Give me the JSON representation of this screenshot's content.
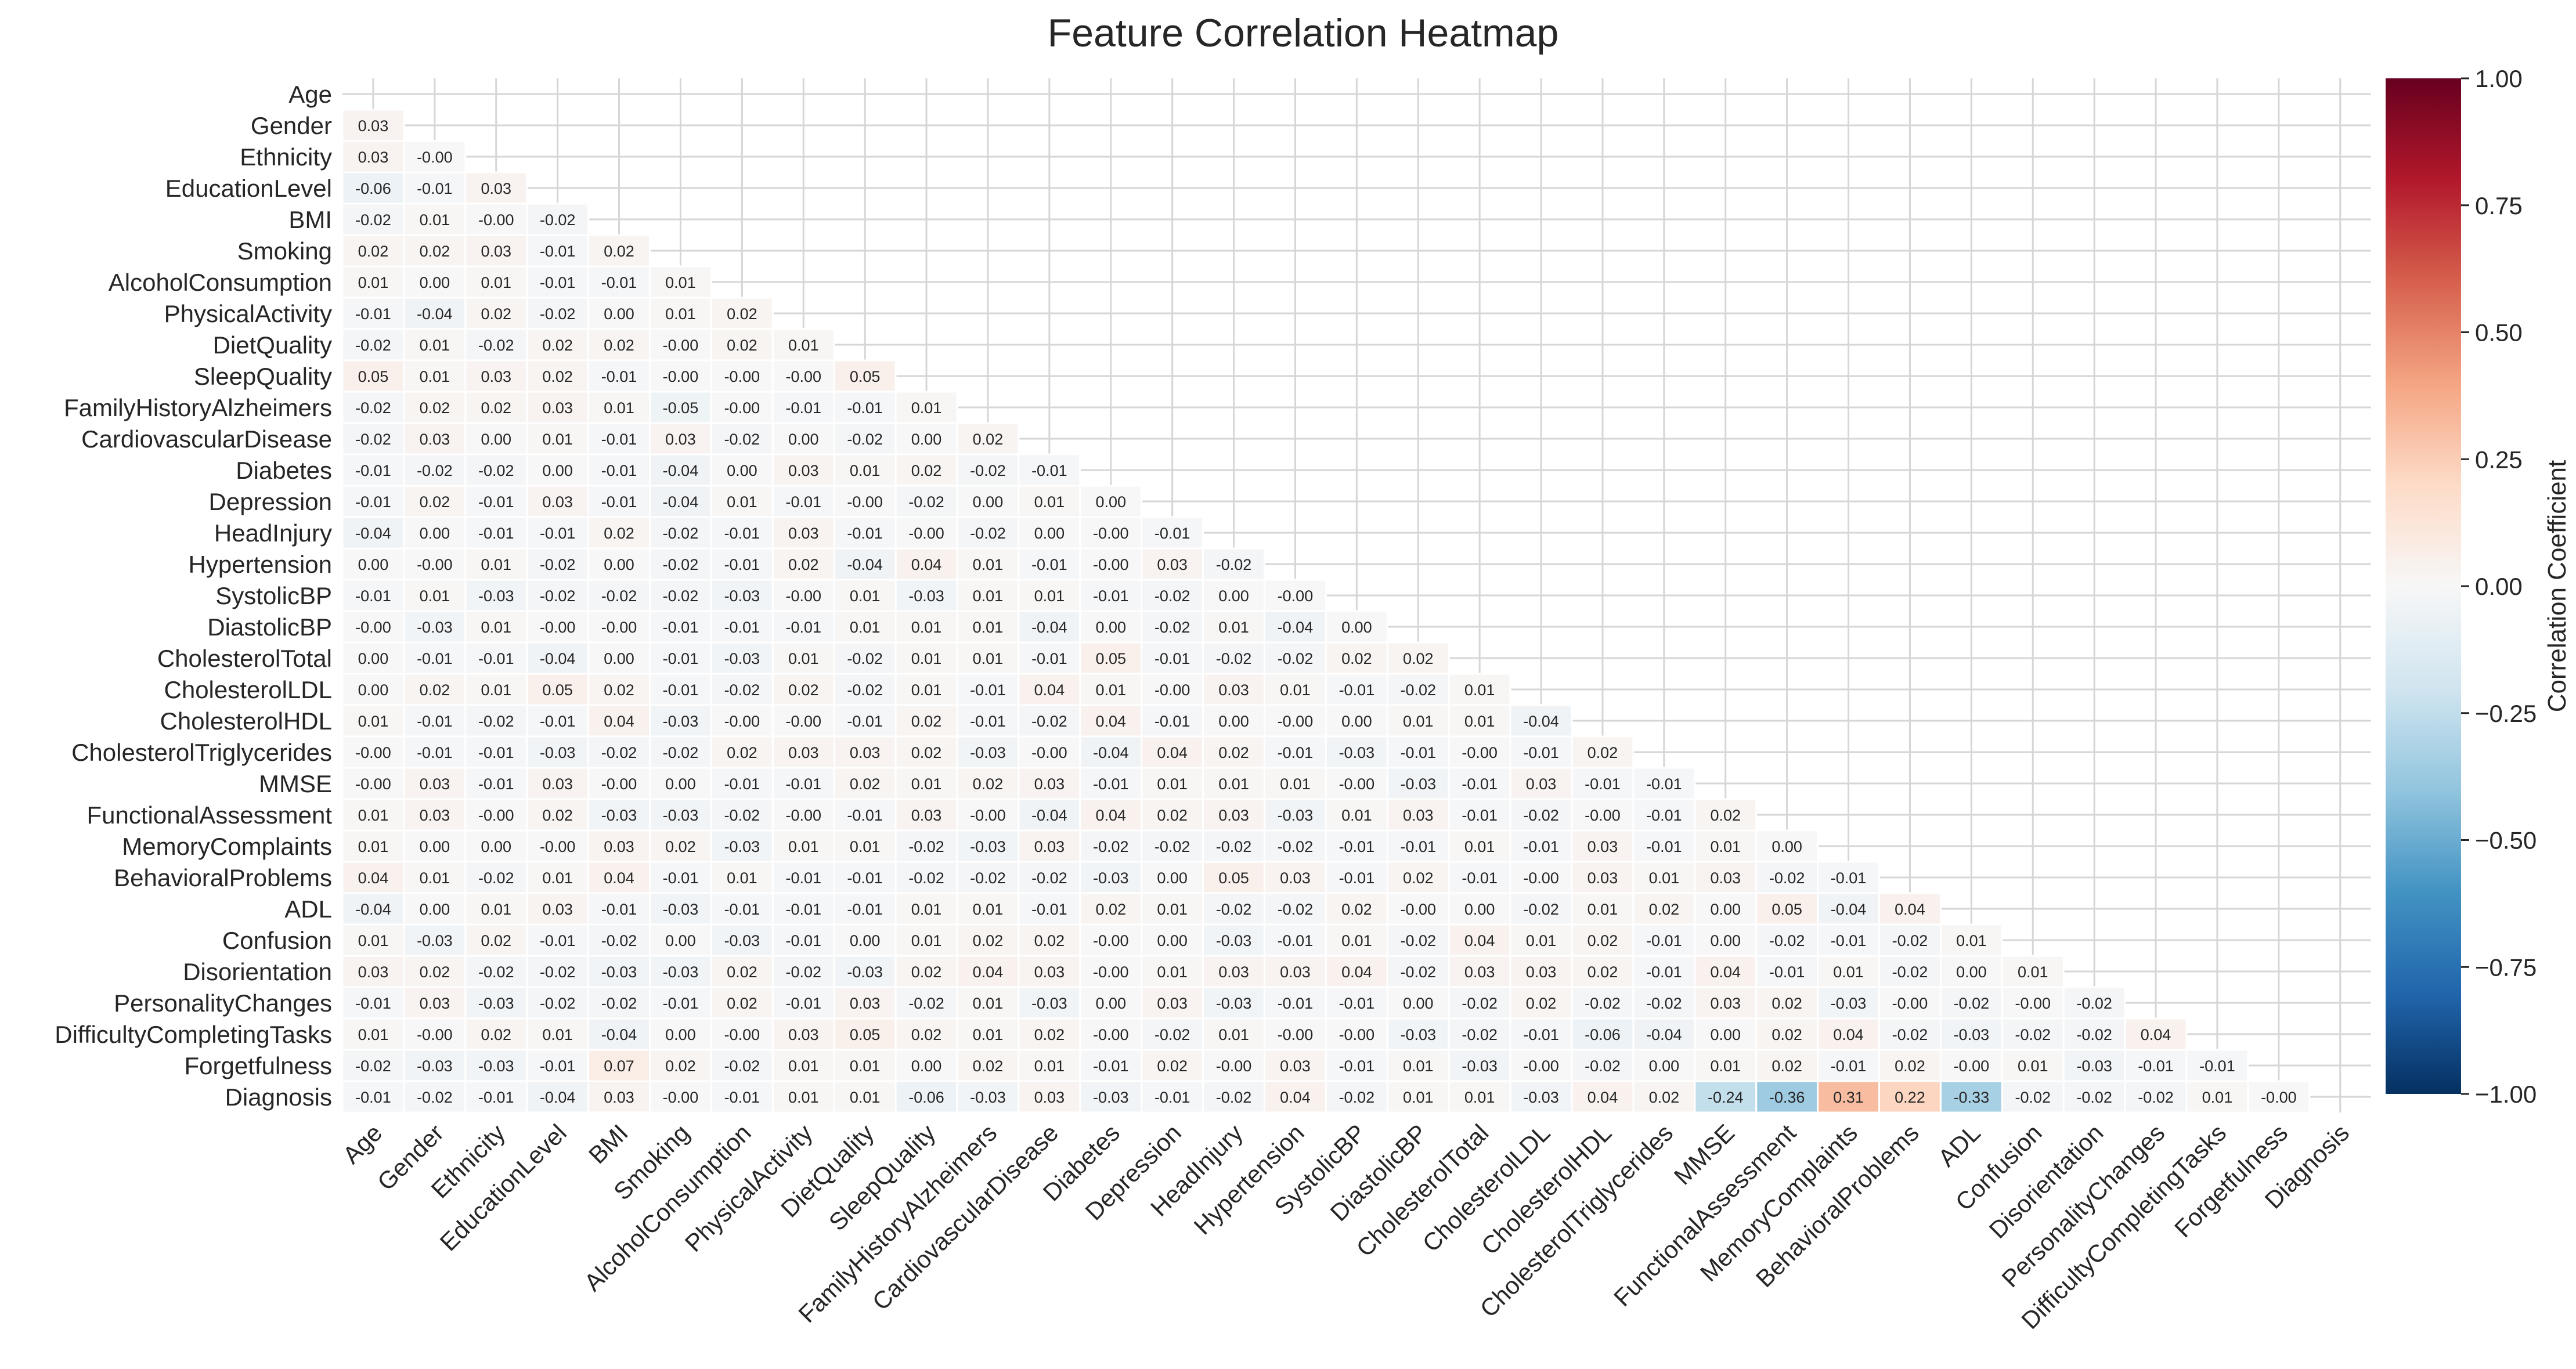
{
  "chart_data": {
    "type": "heatmap",
    "title": "Feature Correlation Heatmap",
    "variables": [
      "Age",
      "Gender",
      "Ethnicity",
      "EducationLevel",
      "BMI",
      "Smoking",
      "AlcoholConsumption",
      "PhysicalActivity",
      "DietQuality",
      "SleepQuality",
      "FamilyHistoryAlzheimers",
      "CardiovascularDisease",
      "Diabetes",
      "Depression",
      "HeadInjury",
      "Hypertension",
      "SystolicBP",
      "DiastolicBP",
      "CholesterolTotal",
      "CholesterolLDL",
      "CholesterolHDL",
      "CholesterolTriglycerides",
      "MMSE",
      "FunctionalAssessment",
      "MemoryComplaints",
      "BehavioralProblems",
      "ADL",
      "Confusion",
      "Disorientation",
      "PersonalityChanges",
      "DifficultyCompletingTasks",
      "Forgetfulness",
      "Diagnosis"
    ],
    "mask": "upper-triangle",
    "lower_triangle_values": [
      [],
      [
        "0.03"
      ],
      [
        "0.03",
        "-0.00"
      ],
      [
        "-0.06",
        "-0.01",
        "0.03"
      ],
      [
        "-0.02",
        "0.01",
        "-0.00",
        "-0.02"
      ],
      [
        "0.02",
        "0.02",
        "0.03",
        "-0.01",
        "0.02"
      ],
      [
        "0.01",
        "0.00",
        "0.01",
        "-0.01",
        "-0.01",
        "0.01"
      ],
      [
        "-0.01",
        "-0.04",
        "0.02",
        "-0.02",
        "0.00",
        "0.01",
        "0.02"
      ],
      [
        "-0.02",
        "0.01",
        "-0.02",
        "0.02",
        "0.02",
        "-0.00",
        "0.02",
        "0.01"
      ],
      [
        "0.05",
        "0.01",
        "0.03",
        "0.02",
        "-0.01",
        "-0.00",
        "-0.00",
        "-0.00",
        "0.05"
      ],
      [
        "-0.02",
        "0.02",
        "0.02",
        "0.03",
        "0.01",
        "-0.05",
        "-0.00",
        "-0.01",
        "-0.01",
        "0.01"
      ],
      [
        "-0.02",
        "0.03",
        "0.00",
        "0.01",
        "-0.01",
        "0.03",
        "-0.02",
        "0.00",
        "-0.02",
        "0.00",
        "0.02"
      ],
      [
        "-0.01",
        "-0.02",
        "-0.02",
        "0.00",
        "-0.01",
        "-0.04",
        "0.00",
        "0.03",
        "0.01",
        "0.02",
        "-0.02",
        "-0.01"
      ],
      [
        "-0.01",
        "0.02",
        "-0.01",
        "0.03",
        "-0.01",
        "-0.04",
        "0.01",
        "-0.01",
        "-0.00",
        "-0.02",
        "0.00",
        "0.01",
        "0.00"
      ],
      [
        "-0.04",
        "0.00",
        "-0.01",
        "-0.01",
        "0.02",
        "-0.02",
        "-0.01",
        "0.03",
        "-0.01",
        "-0.00",
        "-0.02",
        "0.00",
        "-0.00",
        "-0.01"
      ],
      [
        "0.00",
        "-0.00",
        "0.01",
        "-0.02",
        "0.00",
        "-0.02",
        "-0.01",
        "0.02",
        "-0.04",
        "0.04",
        "0.01",
        "-0.01",
        "-0.00",
        "0.03",
        "-0.02"
      ],
      [
        "-0.01",
        "0.01",
        "-0.03",
        "-0.02",
        "-0.02",
        "-0.02",
        "-0.03",
        "-0.00",
        "0.01",
        "-0.03",
        "0.01",
        "0.01",
        "-0.01",
        "-0.02",
        "0.00",
        "-0.00"
      ],
      [
        "-0.00",
        "-0.03",
        "0.01",
        "-0.00",
        "-0.00",
        "-0.01",
        "-0.01",
        "-0.01",
        "0.01",
        "0.01",
        "0.01",
        "-0.04",
        "0.00",
        "-0.02",
        "0.01",
        "-0.04",
        "0.00"
      ],
      [
        "0.00",
        "-0.01",
        "-0.01",
        "-0.04",
        "0.00",
        "-0.01",
        "-0.03",
        "0.01",
        "-0.02",
        "0.01",
        "0.01",
        "-0.01",
        "0.05",
        "-0.01",
        "-0.02",
        "-0.02",
        "0.02",
        "0.02"
      ],
      [
        "0.00",
        "0.02",
        "0.01",
        "0.05",
        "0.02",
        "-0.01",
        "-0.02",
        "0.02",
        "-0.02",
        "0.01",
        "-0.01",
        "0.04",
        "0.01",
        "-0.00",
        "0.03",
        "0.01",
        "-0.01",
        "-0.02",
        "0.01"
      ],
      [
        "0.01",
        "-0.01",
        "-0.02",
        "-0.01",
        "0.04",
        "-0.03",
        "-0.00",
        "-0.00",
        "-0.01",
        "0.02",
        "-0.01",
        "-0.02",
        "0.04",
        "-0.01",
        "0.00",
        "-0.00",
        "0.00",
        "0.01",
        "0.01",
        "-0.04"
      ],
      [
        "-0.00",
        "-0.01",
        "-0.01",
        "-0.03",
        "-0.02",
        "-0.02",
        "0.02",
        "0.03",
        "0.03",
        "0.02",
        "-0.03",
        "-0.00",
        "-0.04",
        "0.04",
        "0.02",
        "-0.01",
        "-0.03",
        "-0.01",
        "-0.00",
        "-0.01",
        "0.02"
      ],
      [
        "-0.00",
        "0.03",
        "-0.01",
        "0.03",
        "-0.00",
        "0.00",
        "-0.01",
        "-0.01",
        "0.02",
        "0.01",
        "0.02",
        "0.03",
        "-0.01",
        "0.01",
        "0.01",
        "0.01",
        "-0.00",
        "-0.03",
        "-0.01",
        "0.03",
        "-0.01",
        "-0.01"
      ],
      [
        "0.01",
        "0.03",
        "-0.00",
        "0.02",
        "-0.03",
        "-0.03",
        "-0.02",
        "-0.00",
        "-0.01",
        "0.03",
        "-0.00",
        "-0.04",
        "0.04",
        "0.02",
        "0.03",
        "-0.03",
        "0.01",
        "0.03",
        "-0.01",
        "-0.02",
        "-0.00",
        "-0.01",
        "0.02"
      ],
      [
        "0.01",
        "0.00",
        "0.00",
        "-0.00",
        "0.03",
        "0.02",
        "-0.03",
        "0.01",
        "0.01",
        "-0.02",
        "-0.03",
        "0.03",
        "-0.02",
        "-0.02",
        "-0.02",
        "-0.02",
        "-0.01",
        "-0.01",
        "0.01",
        "-0.01",
        "0.03",
        "-0.01",
        "0.01",
        "0.00"
      ],
      [
        "0.04",
        "0.01",
        "-0.02",
        "0.01",
        "0.04",
        "-0.01",
        "0.01",
        "-0.01",
        "-0.01",
        "-0.02",
        "-0.02",
        "-0.02",
        "-0.03",
        "0.00",
        "0.05",
        "0.03",
        "-0.01",
        "0.02",
        "-0.01",
        "-0.00",
        "0.03",
        "0.01",
        "0.03",
        "-0.02",
        "-0.01"
      ],
      [
        "-0.04",
        "0.00",
        "0.01",
        "0.03",
        "-0.01",
        "-0.03",
        "-0.01",
        "-0.01",
        "-0.01",
        "0.01",
        "0.01",
        "-0.01",
        "0.02",
        "0.01",
        "-0.02",
        "-0.02",
        "0.02",
        "-0.00",
        "0.00",
        "-0.02",
        "0.01",
        "0.02",
        "0.00",
        "0.05",
        "-0.04",
        "0.04"
      ],
      [
        "0.01",
        "-0.03",
        "0.02",
        "-0.01",
        "-0.02",
        "0.00",
        "-0.03",
        "-0.01",
        "0.00",
        "0.01",
        "0.02",
        "0.02",
        "-0.00",
        "0.00",
        "-0.03",
        "-0.01",
        "0.01",
        "-0.02",
        "0.04",
        "0.01",
        "0.02",
        "-0.01",
        "0.00",
        "-0.02",
        "-0.01",
        "-0.02",
        "0.01"
      ],
      [
        "0.03",
        "0.02",
        "-0.02",
        "-0.02",
        "-0.03",
        "-0.03",
        "0.02",
        "-0.02",
        "-0.03",
        "0.02",
        "0.04",
        "0.03",
        "-0.00",
        "0.01",
        "0.03",
        "0.03",
        "0.04",
        "-0.02",
        "0.03",
        "0.03",
        "0.02",
        "-0.01",
        "0.04",
        "-0.01",
        "0.01",
        "-0.02",
        "0.00",
        "0.01"
      ],
      [
        "-0.01",
        "0.03",
        "-0.03",
        "-0.02",
        "-0.02",
        "-0.01",
        "0.02",
        "-0.01",
        "0.03",
        "-0.02",
        "0.01",
        "-0.03",
        "0.00",
        "0.03",
        "-0.03",
        "-0.01",
        "-0.01",
        "0.00",
        "-0.02",
        "0.02",
        "-0.02",
        "-0.02",
        "0.03",
        "0.02",
        "-0.03",
        "-0.00",
        "-0.02",
        "-0.00",
        "-0.02"
      ],
      [
        "0.01",
        "-0.00",
        "0.02",
        "0.01",
        "-0.04",
        "0.00",
        "-0.00",
        "0.03",
        "0.05",
        "0.02",
        "0.01",
        "0.02",
        "-0.00",
        "-0.02",
        "0.01",
        "-0.00",
        "-0.00",
        "-0.03",
        "-0.02",
        "-0.01",
        "-0.06",
        "-0.04",
        "0.00",
        "0.02",
        "0.04",
        "-0.02",
        "-0.03",
        "-0.02",
        "-0.02",
        "0.04"
      ],
      [
        "-0.02",
        "-0.03",
        "-0.03",
        "-0.01",
        "0.07",
        "0.02",
        "-0.02",
        "0.01",
        "0.01",
        "0.00",
        "0.02",
        "0.01",
        "-0.01",
        "0.02",
        "-0.00",
        "0.03",
        "-0.01",
        "0.01",
        "-0.03",
        "-0.00",
        "-0.02",
        "0.00",
        "0.01",
        "0.02",
        "-0.01",
        "0.02",
        "-0.00",
        "0.01",
        "-0.03",
        "-0.01",
        "-0.01"
      ],
      [
        "-0.01",
        "-0.02",
        "-0.01",
        "-0.04",
        "0.03",
        "-0.00",
        "-0.01",
        "0.01",
        "0.01",
        "-0.06",
        "-0.03",
        "0.03",
        "-0.03",
        "-0.01",
        "-0.02",
        "0.04",
        "-0.02",
        "0.01",
        "0.01",
        "-0.03",
        "0.04",
        "0.02",
        "-0.24",
        "-0.36",
        "0.31",
        "0.22",
        "-0.33",
        "-0.02",
        "-0.02",
        "-0.02",
        "0.01",
        "-0.00"
      ]
    ],
    "colormap": "RdBu_r",
    "vmin": -1.0,
    "vmax": 1.0,
    "colorbar": {
      "label": "Correlation Coefficient",
      "ticks": [
        "1.00",
        "0.75",
        "0.50",
        "0.25",
        "0.00",
        "−0.25",
        "−0.50",
        "−0.75",
        "−1.00"
      ]
    },
    "grid": true
  }
}
